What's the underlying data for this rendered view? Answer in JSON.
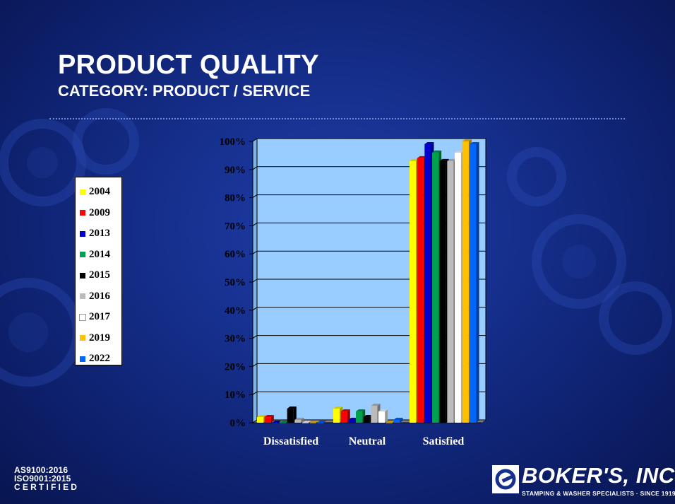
{
  "slide": {
    "title": "PRODUCT QUALITY",
    "subtitle": "CATEGORY: PRODUCT / SERVICE"
  },
  "footer": {
    "cert_line1": "AS9100:2016",
    "cert_line2": "ISO9001:2015",
    "cert_line3": "CERTIFIED",
    "logo_name": "BOKER'S, INC.",
    "logo_tagline": "STAMPING & WASHER SPECIALISTS · SINCE 1919"
  },
  "chart_data": {
    "type": "bar",
    "style": "3d-clustered-column",
    "title": "",
    "xlabel": "",
    "ylabel": "",
    "categories": [
      "Dissatisfied",
      "Neutral",
      "Satisfied"
    ],
    "ylim": [
      0,
      100
    ],
    "yticks": [
      0,
      10,
      20,
      30,
      40,
      50,
      60,
      70,
      80,
      90,
      100
    ],
    "ytick_labels": [
      "0%",
      "10%",
      "20%",
      "30%",
      "40%",
      "50%",
      "60%",
      "70%",
      "80%",
      "90%",
      "100%"
    ],
    "grid": true,
    "legend_position": "left",
    "plot_background": "#99ccff",
    "series": [
      {
        "name": "2004",
        "color": "#ffff00",
        "values": [
          2,
          5,
          93
        ]
      },
      {
        "name": "2009",
        "color": "#ff0000",
        "values": [
          2,
          4,
          94
        ]
      },
      {
        "name": "2013",
        "color": "#0000cc",
        "values": [
          0,
          1,
          99
        ]
      },
      {
        "name": "2014",
        "color": "#00a050",
        "values": [
          0,
          4,
          96
        ]
      },
      {
        "name": "2015",
        "color": "#000000",
        "values": [
          5,
          2,
          93
        ]
      },
      {
        "name": "2016",
        "color": "#bbbbbb",
        "values": [
          1,
          6,
          93
        ]
      },
      {
        "name": "2017",
        "color": "#ffffff",
        "values": [
          0,
          4,
          96
        ]
      },
      {
        "name": "2019",
        "color": "#ffc000",
        "values": [
          0,
          0,
          100
        ]
      },
      {
        "name": "2022",
        "color": "#0066ff",
        "values": [
          0,
          1,
          99
        ]
      }
    ]
  }
}
